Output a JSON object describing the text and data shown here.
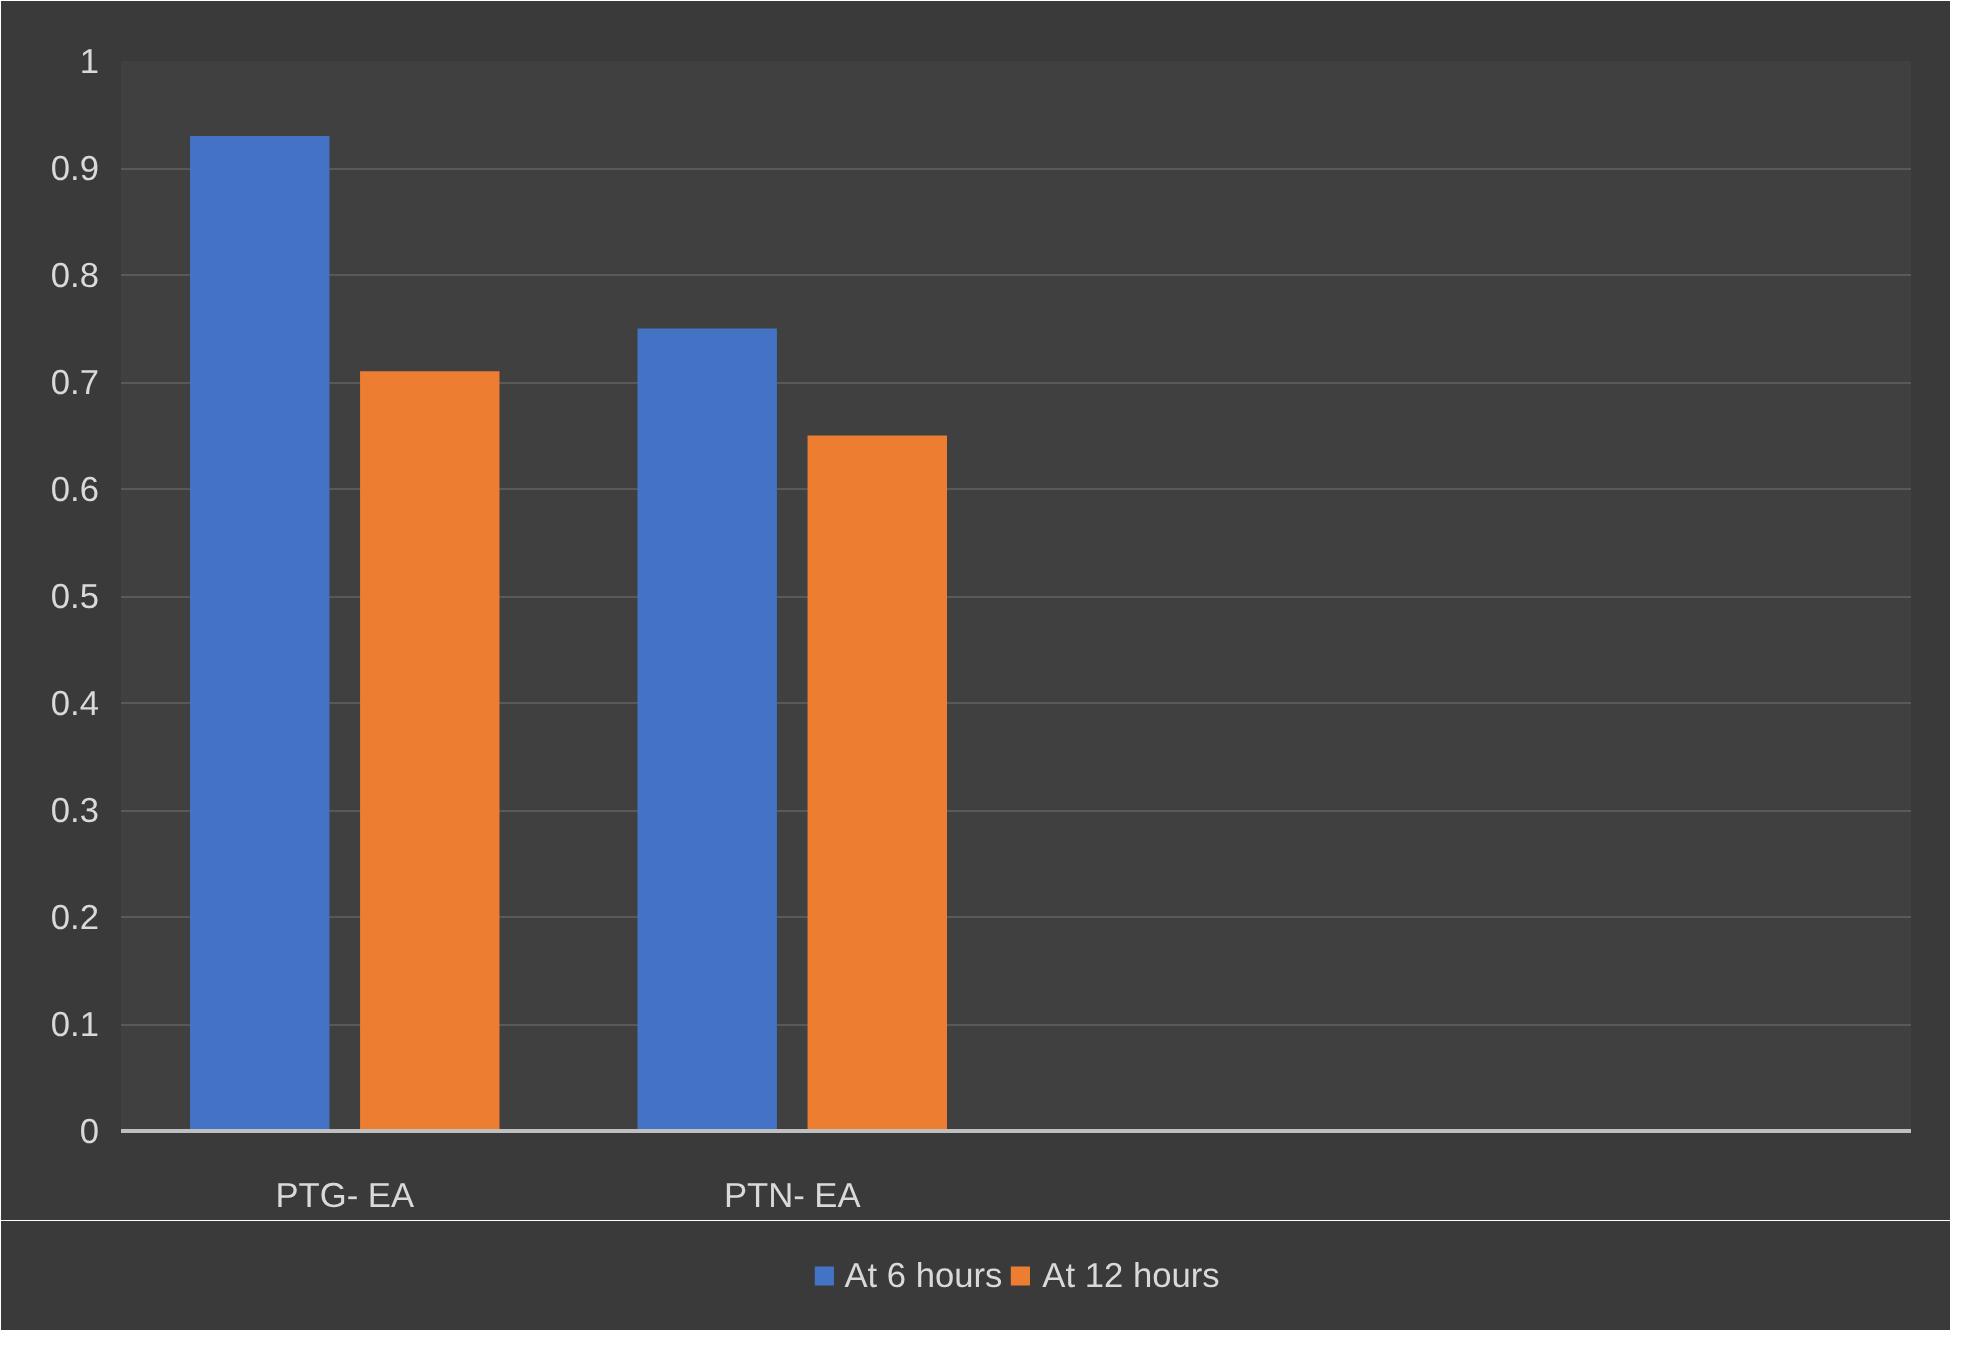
{
  "chart_data": {
    "type": "bar",
    "categories": [
      "PTG- EA",
      "PTN- EA",
      null,
      null
    ],
    "series": [
      {
        "name": "At 6 hours",
        "color": "#4472c4",
        "values": [
          0.93,
          0.75,
          null,
          null
        ]
      },
      {
        "name": "At 12 hours",
        "color": "#ed7d31",
        "values": [
          0.71,
          0.65,
          null,
          null
        ]
      }
    ],
    "ylim": [
      0,
      1
    ],
    "yticks": [
      0,
      0.1,
      0.2,
      0.3,
      0.4,
      0.5,
      0.6,
      0.7,
      0.8,
      0.9,
      1
    ],
    "grid": "y",
    "legend": "bottom"
  }
}
